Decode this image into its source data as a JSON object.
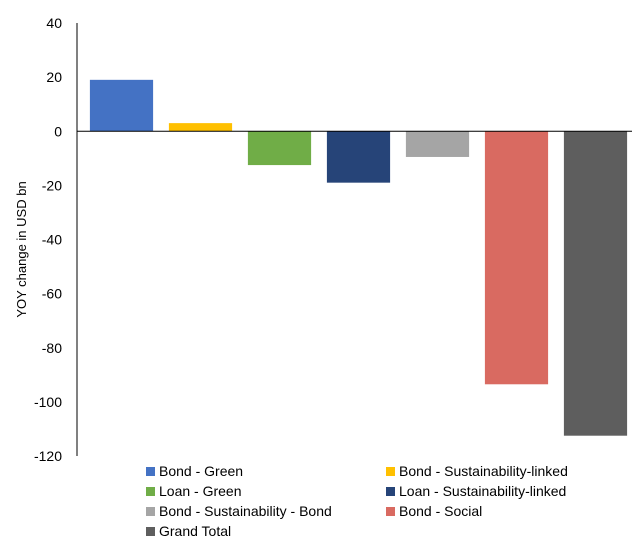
{
  "chart_data": {
    "type": "bar",
    "ylabel": "YOY change in USD bn",
    "ylim": [
      -120,
      40
    ],
    "yticks": [
      40,
      20,
      0,
      -20,
      -40,
      -60,
      -80,
      -100,
      -120
    ],
    "grid": false,
    "legend_position": "bottom",
    "series": [
      {
        "name": "Bond - Green",
        "value": 19,
        "color": "#4472C4"
      },
      {
        "name": "Bond - Sustainability-linked",
        "value": 3,
        "color": "#FFC000"
      },
      {
        "name": "Loan - Green",
        "value": -12.5,
        "color": "#70AD47"
      },
      {
        "name": "Loan - Sustainability-linked",
        "value": -19,
        "color": "#264478"
      },
      {
        "name": "Bond - Sustainability - Bond",
        "value": -9.5,
        "color": "#A5A5A5"
      },
      {
        "name": "Bond - Social",
        "value": -93.5,
        "color": "#D96A61"
      },
      {
        "name": "Grand Total",
        "value": -112.5,
        "color": "#5E5E5E"
      }
    ]
  }
}
